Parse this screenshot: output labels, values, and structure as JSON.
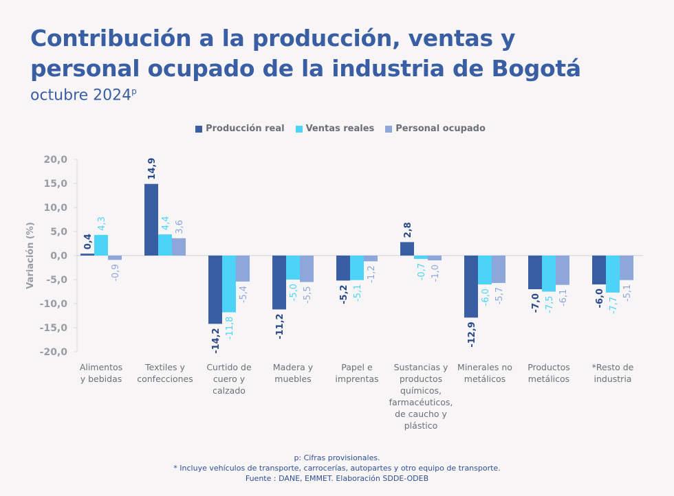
{
  "title_line1": "Contribución a la producción, ventas y",
  "title_line2": "personal ocupado de la industria de Bogotá",
  "subtitle": "octubre 2024",
  "subtitle_sup": "p",
  "colors": {
    "produccion": "#3a5ea4",
    "ventas": "#4dd3f8",
    "personal": "#8ea7da",
    "text": "#3a5ea4",
    "axis": "#9a9ca3"
  },
  "chart_data": {
    "type": "bar",
    "ylabel": "Variación (%)",
    "ylim": [
      -20,
      20
    ],
    "yticks": [
      "20,0",
      "15,0",
      "10,0",
      "5,0",
      "0,0",
      "-5,0",
      "-10,0",
      "-15,0",
      "-20,0"
    ],
    "ytick_values": [
      20,
      15,
      10,
      5,
      0,
      -5,
      -10,
      -15,
      -20
    ],
    "legend_position": "top-center",
    "categories": [
      [
        "Alimentos",
        "y bebidas"
      ],
      [
        "Textiles y",
        "confecciones"
      ],
      [
        "Curtido de",
        "cuero y",
        "calzado"
      ],
      [
        "Madera y",
        "muebles"
      ],
      [
        "Papel e",
        "imprentas"
      ],
      [
        "Sustancias y",
        "productos",
        "químicos,",
        "farmacéuticos,",
        "de caucho y",
        "plástico"
      ],
      [
        "Minerales no",
        "metálicos"
      ],
      [
        "Productos",
        "metálicos"
      ],
      [
        "*Resto de",
        "industria"
      ]
    ],
    "series": [
      {
        "name": "Producción real",
        "key": "produccion",
        "values": [
          0.4,
          14.9,
          -14.2,
          -11.2,
          -5.2,
          2.8,
          -12.9,
          -7.0,
          -6.0
        ],
        "labels": [
          "0,4",
          "14,9",
          "-14,2",
          "-11,2",
          "-5,2",
          "2,8",
          "-12,9",
          "-7,0",
          "-6,0"
        ]
      },
      {
        "name": "Ventas reales",
        "key": "ventas",
        "values": [
          4.3,
          4.4,
          -11.8,
          -5.0,
          -5.1,
          -0.7,
          -6.0,
          -7.5,
          -7.7
        ],
        "labels": [
          "4,3",
          "4,4",
          "-11,8",
          "-5,0",
          "-5,1",
          "-0,7",
          "-6,0",
          "-7,5",
          "-7,7"
        ]
      },
      {
        "name": "Personal ocupado",
        "key": "personal",
        "values": [
          -0.9,
          3.6,
          -5.4,
          -5.5,
          -1.2,
          -1.0,
          -5.7,
          -6.1,
          -5.1
        ],
        "labels": [
          "-0,9",
          "3,6",
          "-5,4",
          "-5,5",
          "-1,2",
          "-1,0",
          "-5,7",
          "-6,1",
          "-5,1"
        ]
      }
    ]
  },
  "footer": {
    "line1": "p: Cifras provisionales.",
    "line2": "*  Incluye vehículos de transporte, carrocerías, autopartes y otro equipo de transporte.",
    "line3": "Fuente : DANE, EMMET. Elaboración SDDE-ODEB"
  }
}
